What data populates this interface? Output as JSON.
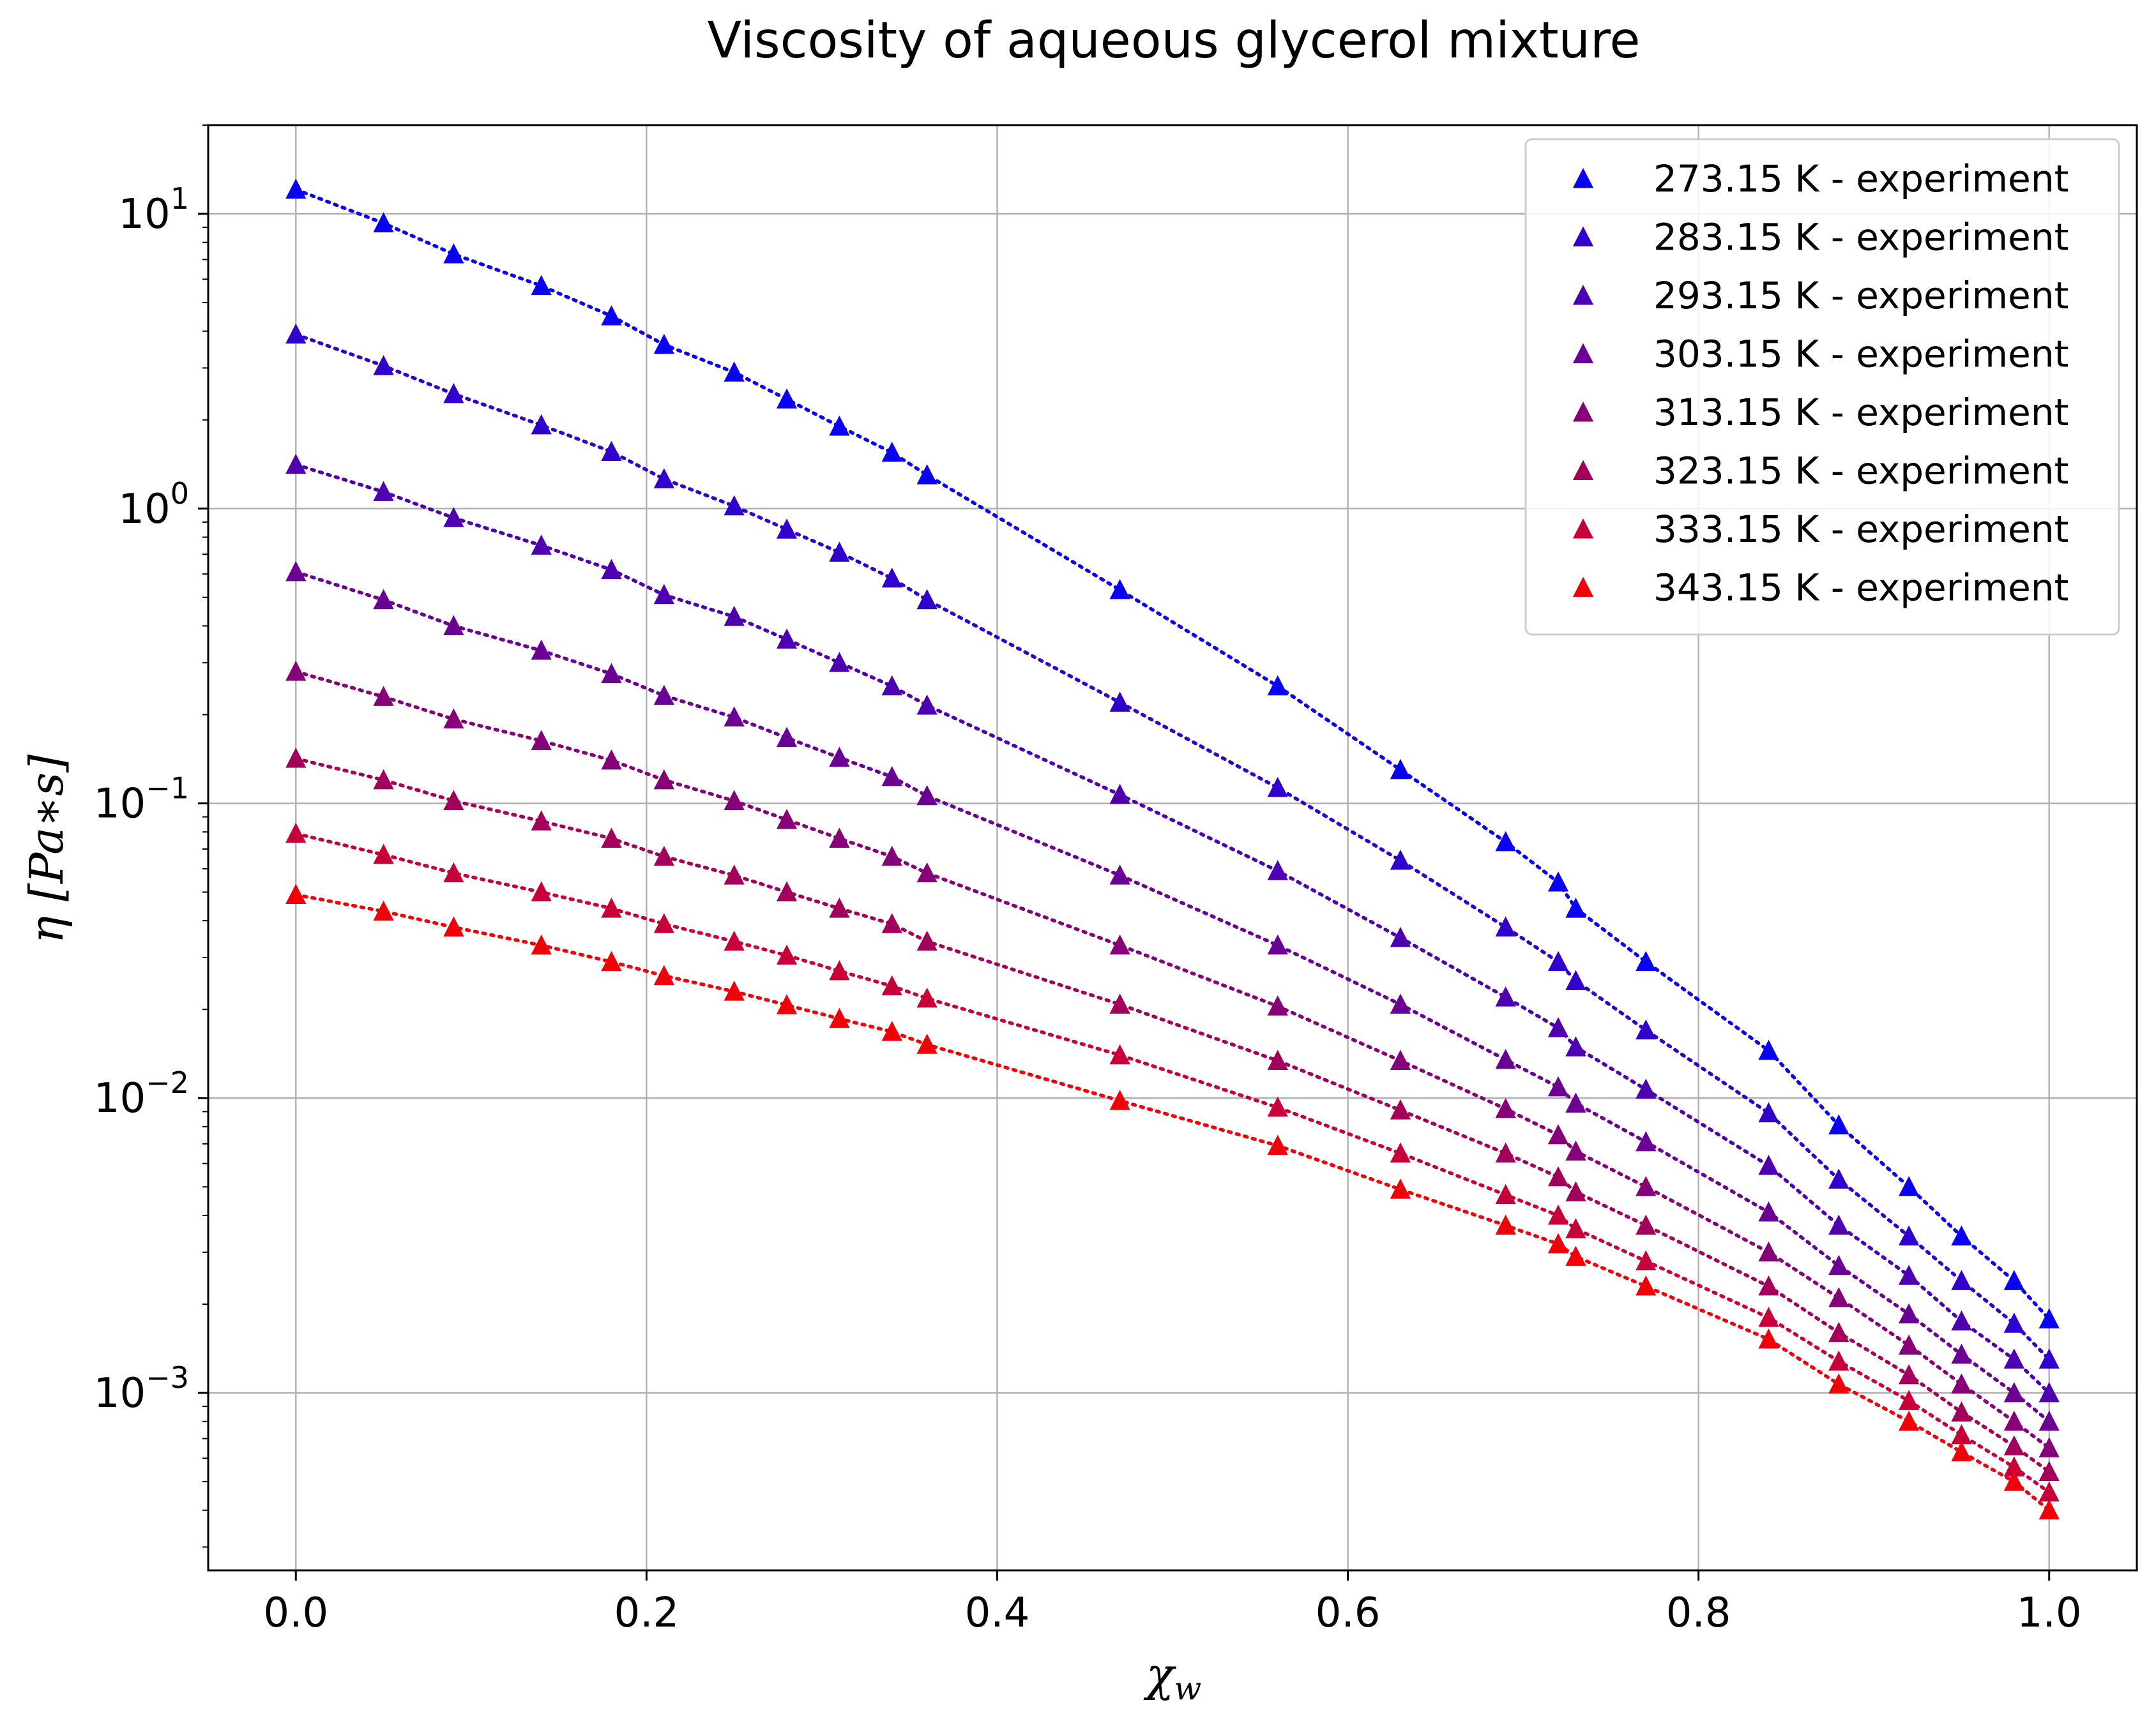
{
  "chart_data": {
    "type": "scatter",
    "title": "Viscosity of aqueous glycerol mixture",
    "xlabel": "χ",
    "xlabel_sub": "w",
    "ylabel": "η  [Pa∗s]",
    "xlim": [
      -0.05,
      1.05
    ],
    "ylim": [
      0.00025,
      20
    ],
    "yscale": "log",
    "grid": true,
    "legend_position": "top-right",
    "x_ticks": [
      "0.0",
      "0.2",
      "0.4",
      "0.6",
      "0.8",
      "1.0"
    ],
    "y_ticks": [
      {
        "base": "10",
        "exp": "1"
      },
      {
        "base": "10",
        "exp": "0"
      },
      {
        "base": "10",
        "exp": "−1"
      },
      {
        "base": "10",
        "exp": "−2"
      },
      {
        "base": "10",
        "exp": "−3"
      }
    ],
    "series": [
      {
        "name": "273.15 K - experiment",
        "color": "#0a00f4",
        "x": [
          0,
          0.05,
          0.09,
          0.14,
          0.18,
          0.21,
          0.25,
          0.28,
          0.31,
          0.34,
          0.36,
          0.47,
          0.56,
          0.63,
          0.69,
          0.72,
          0.73,
          0.77,
          0.84,
          0.88,
          0.92,
          0.95,
          0.98,
          1.0
        ],
        "y": [
          12.1,
          9.3,
          7.3,
          5.7,
          4.5,
          3.6,
          2.9,
          2.35,
          1.9,
          1.55,
          1.3,
          0.53,
          0.25,
          0.13,
          0.074,
          0.054,
          0.044,
          0.029,
          0.0145,
          0.0081,
          0.005,
          0.0034,
          0.0024,
          0.00178
        ]
      },
      {
        "name": "283.15 K - experiment",
        "color": "#3100cd",
        "x": [
          0,
          0.05,
          0.09,
          0.14,
          0.18,
          0.21,
          0.25,
          0.28,
          0.31,
          0.34,
          0.36,
          0.47,
          0.56,
          0.63,
          0.69,
          0.72,
          0.73,
          0.77,
          0.84,
          0.88,
          0.92,
          0.95,
          0.98,
          1.0
        ],
        "y": [
          3.9,
          3.05,
          2.45,
          1.92,
          1.56,
          1.26,
          1.02,
          0.85,
          0.71,
          0.58,
          0.49,
          0.22,
          0.113,
          0.064,
          0.038,
          0.029,
          0.025,
          0.017,
          0.0089,
          0.0053,
          0.0034,
          0.0024,
          0.00172,
          0.0013
        ]
      },
      {
        "name": "293.15 K - experiment",
        "color": "#4e00b0",
        "x": [
          0,
          0.05,
          0.09,
          0.14,
          0.18,
          0.21,
          0.25,
          0.28,
          0.31,
          0.34,
          0.36,
          0.47,
          0.56,
          0.63,
          0.69,
          0.72,
          0.73,
          0.77,
          0.84,
          0.88,
          0.92,
          0.95,
          0.98,
          1.0
        ],
        "y": [
          1.41,
          1.14,
          0.93,
          0.75,
          0.62,
          0.51,
          0.43,
          0.36,
          0.3,
          0.25,
          0.215,
          0.107,
          0.059,
          0.035,
          0.022,
          0.0173,
          0.0149,
          0.0107,
          0.0059,
          0.0037,
          0.0025,
          0.00175,
          0.0013,
          0.001
        ]
      },
      {
        "name": "303.15 K - experiment",
        "color": "#6a0094",
        "x": [
          0,
          0.05,
          0.09,
          0.14,
          0.18,
          0.21,
          0.25,
          0.28,
          0.31,
          0.34,
          0.36,
          0.47,
          0.56,
          0.63,
          0.69,
          0.72,
          0.73,
          0.77,
          0.84,
          0.88,
          0.92,
          0.95,
          0.98,
          1.0
        ],
        "y": [
          0.61,
          0.49,
          0.4,
          0.33,
          0.275,
          0.232,
          0.196,
          0.167,
          0.143,
          0.123,
          0.106,
          0.057,
          0.033,
          0.0208,
          0.0135,
          0.0109,
          0.0096,
          0.0071,
          0.0041,
          0.0027,
          0.00185,
          0.00135,
          0.001,
          0.0008
        ]
      },
      {
        "name": "313.15 K - experiment",
        "color": "#860078",
        "x": [
          0,
          0.05,
          0.09,
          0.14,
          0.18,
          0.21,
          0.25,
          0.28,
          0.31,
          0.34,
          0.36,
          0.47,
          0.56,
          0.63,
          0.69,
          0.72,
          0.73,
          0.77,
          0.84,
          0.88,
          0.92,
          0.95,
          0.98,
          1.0
        ],
        "y": [
          0.28,
          0.23,
          0.193,
          0.163,
          0.14,
          0.12,
          0.102,
          0.088,
          0.076,
          0.066,
          0.058,
          0.033,
          0.0205,
          0.0134,
          0.0092,
          0.0075,
          0.0066,
          0.005,
          0.003,
          0.0021,
          0.00145,
          0.00107,
          0.0008,
          0.00065
        ]
      },
      {
        "name": "323.15 K - experiment",
        "color": "#a3005b",
        "x": [
          0,
          0.05,
          0.09,
          0.14,
          0.18,
          0.21,
          0.25,
          0.28,
          0.31,
          0.34,
          0.36,
          0.47,
          0.56,
          0.63,
          0.69,
          0.72,
          0.73,
          0.77,
          0.84,
          0.88,
          0.92,
          0.95,
          0.98,
          1.0
        ],
        "y": [
          0.142,
          0.12,
          0.102,
          0.087,
          0.076,
          0.066,
          0.057,
          0.05,
          0.044,
          0.039,
          0.034,
          0.0208,
          0.0134,
          0.0091,
          0.0065,
          0.0054,
          0.0048,
          0.0037,
          0.0023,
          0.0016,
          0.00115,
          0.00086,
          0.00066,
          0.00054
        ]
      },
      {
        "name": "333.15 K - experiment",
        "color": "#c7003a",
        "x": [
          0,
          0.05,
          0.09,
          0.14,
          0.18,
          0.21,
          0.25,
          0.28,
          0.31,
          0.34,
          0.36,
          0.47,
          0.56,
          0.63,
          0.69,
          0.72,
          0.73,
          0.77,
          0.84,
          0.88,
          0.92,
          0.95,
          0.98,
          1.0
        ],
        "y": [
          0.079,
          0.067,
          0.058,
          0.05,
          0.044,
          0.039,
          0.034,
          0.0305,
          0.027,
          0.024,
          0.0218,
          0.014,
          0.0093,
          0.0065,
          0.0047,
          0.004,
          0.0036,
          0.0028,
          0.0018,
          0.00128,
          0.00094,
          0.00072,
          0.00056,
          0.00046
        ]
      },
      {
        "name": "343.15 K - experiment",
        "color": "#f20009",
        "x": [
          0,
          0.05,
          0.09,
          0.14,
          0.18,
          0.21,
          0.25,
          0.28,
          0.31,
          0.34,
          0.36,
          0.47,
          0.56,
          0.63,
          0.69,
          0.72,
          0.73,
          0.77,
          0.84,
          0.88,
          0.92,
          0.95,
          0.98,
          1.0
        ],
        "y": [
          0.049,
          0.043,
          0.038,
          0.033,
          0.029,
          0.026,
          0.023,
          0.0207,
          0.0186,
          0.0168,
          0.0152,
          0.0098,
          0.0069,
          0.0049,
          0.0037,
          0.0032,
          0.0029,
          0.0023,
          0.00152,
          0.00107,
          0.0008,
          0.00063,
          0.0005,
          0.0004
        ]
      }
    ]
  }
}
